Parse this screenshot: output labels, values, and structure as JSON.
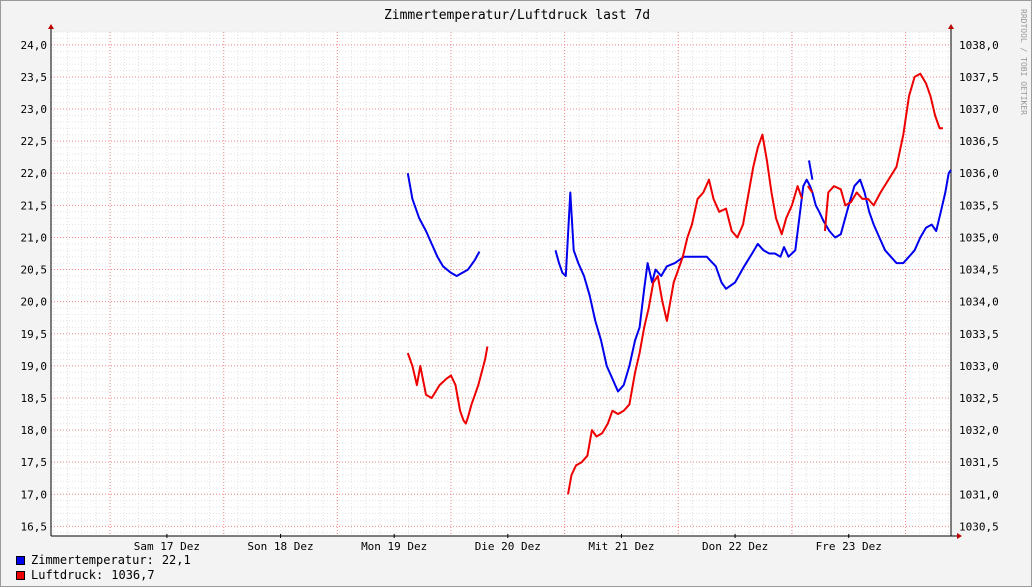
{
  "colors": {
    "temp": "#0000ee",
    "pressure": "#ee0000",
    "grid_minor": "#e2e2e2",
    "grid_major": "#f08a8a",
    "background": "#ffffff"
  },
  "watermark": "RRDTOOL / TOBI OETIKER",
  "legend": [
    {
      "label": "Zimmertemperatur:",
      "value": "22,1",
      "color": "#0000ee"
    },
    {
      "label": "Luftdruck:",
      "value": "1036,7",
      "color": "#ee0000"
    }
  ],
  "chart_data": {
    "type": "line",
    "title": "Zimmertemperatur/Luftdruck last 7d",
    "grid": true,
    "legend_position": "bottom-left",
    "x_ticks": [
      "Sam 17 Dez",
      "Son 18 Dez",
      "Mon 19 Dez",
      "Die 20 Dez",
      "Mit 21 Dez",
      "Don 22 Dez",
      "Fre 23 Dez"
    ],
    "x_range": [
      "Sam 17 Dez",
      "Fre 23 Dez"
    ],
    "y_left": {
      "range": [
        16.35,
        24.2
      ],
      "ticks": [
        "16,5",
        "17,0",
        "17,5",
        "18,0",
        "18,5",
        "19,0",
        "19,5",
        "20,0",
        "20,5",
        "21,0",
        "21,5",
        "22,0",
        "22,5",
        "23,0",
        "23,5",
        "24,0"
      ]
    },
    "y_right": {
      "range": [
        1030.35,
        1038.2
      ],
      "ticks": [
        "1030,5",
        "1031,0",
        "1031,5",
        "1032,0",
        "1032,5",
        "1033,0",
        "1033,5",
        "1034,0",
        "1034,5",
        "1035,0",
        "1035,5",
        "1036,0",
        "1036,5",
        "1037,0",
        "1037,5",
        "1038,0"
      ]
    },
    "series": [
      {
        "name": "Zimmertemperatur",
        "axis": "left",
        "segments": [
          [
            [
              19.62,
              22.0
            ],
            [
              19.66,
              21.6
            ],
            [
              19.72,
              21.3
            ],
            [
              19.78,
              21.1
            ],
            [
              19.83,
              20.9
            ],
            [
              19.88,
              20.7
            ],
            [
              19.93,
              20.55
            ],
            [
              20.0,
              20.45
            ],
            [
              20.05,
              20.4
            ],
            [
              20.1,
              20.45
            ],
            [
              20.15,
              20.5
            ],
            [
              20.21,
              20.65
            ],
            [
              20.25,
              20.78
            ]
          ],
          [
            [
              20.92,
              20.8
            ],
            [
              20.95,
              20.6
            ],
            [
              20.98,
              20.45
            ],
            [
              21.01,
              20.4
            ],
            [
              21.05,
              21.7
            ],
            [
              21.08,
              20.8
            ],
            [
              21.12,
              20.6
            ],
            [
              21.17,
              20.4
            ],
            [
              21.22,
              20.1
            ],
            [
              21.27,
              19.7
            ],
            [
              21.32,
              19.4
            ],
            [
              21.37,
              19.0
            ],
            [
              21.42,
              18.8
            ],
            [
              21.47,
              18.6
            ],
            [
              21.52,
              18.7
            ],
            [
              21.57,
              19.0
            ],
            [
              21.62,
              19.4
            ],
            [
              21.66,
              19.6
            ],
            [
              21.7,
              20.2
            ],
            [
              21.73,
              20.6
            ],
            [
              21.77,
              20.3
            ],
            [
              21.8,
              20.5
            ],
            [
              21.85,
              20.4
            ],
            [
              21.9,
              20.55
            ],
            [
              21.97,
              20.6
            ],
            [
              22.05,
              20.7
            ],
            [
              22.15,
              20.7
            ],
            [
              22.25,
              20.7
            ],
            [
              22.33,
              20.55
            ],
            [
              22.38,
              20.3
            ],
            [
              22.42,
              20.2
            ],
            [
              22.5,
              20.3
            ],
            [
              22.58,
              20.55
            ],
            [
              22.65,
              20.75
            ],
            [
              22.7,
              20.9
            ],
            [
              22.75,
              20.8
            ],
            [
              22.8,
              20.75
            ],
            [
              22.85,
              20.75
            ],
            [
              22.9,
              20.7
            ],
            [
              22.93,
              20.85
            ],
            [
              22.97,
              20.7
            ],
            [
              23.03,
              20.8
            ],
            [
              23.1,
              21.8
            ],
            [
              23.13,
              21.9
            ],
            [
              23.16,
              21.8
            ],
            [
              23.18,
              21.7
            ],
            [
              23.21,
              21.5
            ],
            [
              23.24,
              21.4
            ],
            [
              23.28,
              21.25
            ],
            [
              23.33,
              21.1
            ],
            [
              23.38,
              21.0
            ],
            [
              23.43,
              21.05
            ],
            [
              23.5,
              21.5
            ],
            [
              23.55,
              21.8
            ],
            [
              23.6,
              21.9
            ],
            [
              23.64,
              21.7
            ],
            [
              23.68,
              21.4
            ],
            [
              23.72,
              21.2
            ],
            [
              23.77,
              21.0
            ],
            [
              23.82,
              20.8
            ],
            [
              23.87,
              20.7
            ],
            [
              23.92,
              20.6
            ],
            [
              23.98,
              20.6
            ],
            [
              24.03,
              20.7
            ],
            [
              24.08,
              20.8
            ],
            [
              24.13,
              21.0
            ],
            [
              24.18,
              21.15
            ],
            [
              24.23,
              21.2
            ],
            [
              24.27,
              21.1
            ],
            [
              24.31,
              21.4
            ],
            [
              24.35,
              21.7
            ],
            [
              24.38,
              22.0
            ],
            [
              24.4,
              22.05
            ]
          ],
          [
            [
              23.15,
              22.2
            ],
            [
              23.18,
              21.9
            ]
          ]
        ]
      },
      {
        "name": "Luftdruck",
        "axis": "right",
        "segments": [
          [
            [
              19.62,
              1033.2
            ],
            [
              19.66,
              1033.0
            ],
            [
              19.7,
              1032.7
            ],
            [
              19.73,
              1033.0
            ],
            [
              19.78,
              1032.55
            ],
            [
              19.83,
              1032.5
            ],
            [
              19.9,
              1032.7
            ],
            [
              19.96,
              1032.8
            ],
            [
              20.0,
              1032.85
            ],
            [
              20.04,
              1032.7
            ],
            [
              20.08,
              1032.3
            ],
            [
              20.11,
              1032.15
            ],
            [
              20.13,
              1032.1
            ],
            [
              20.15,
              1032.2
            ],
            [
              20.18,
              1032.4
            ],
            [
              20.21,
              1032.55
            ],
            [
              20.24,
              1032.7
            ],
            [
              20.27,
              1032.9
            ],
            [
              20.3,
              1033.1
            ],
            [
              20.32,
              1033.3
            ]
          ],
          [
            [
              21.03,
              1031.0
            ],
            [
              21.06,
              1031.3
            ],
            [
              21.1,
              1031.45
            ],
            [
              21.15,
              1031.5
            ],
            [
              21.2,
              1031.6
            ],
            [
              21.24,
              1032.0
            ],
            [
              21.28,
              1031.9
            ],
            [
              21.33,
              1031.95
            ],
            [
              21.38,
              1032.1
            ],
            [
              21.42,
              1032.3
            ],
            [
              21.47,
              1032.25
            ],
            [
              21.52,
              1032.3
            ],
            [
              21.57,
              1032.4
            ],
            [
              21.62,
              1032.9
            ],
            [
              21.66,
              1033.2
            ],
            [
              21.7,
              1033.6
            ],
            [
              21.74,
              1033.9
            ],
            [
              21.78,
              1034.3
            ],
            [
              21.82,
              1034.4
            ],
            [
              21.86,
              1034.0
            ],
            [
              21.9,
              1033.7
            ],
            [
              21.93,
              1034.0
            ],
            [
              21.96,
              1034.3
            ],
            [
              22.0,
              1034.5
            ],
            [
              22.04,
              1034.7
            ],
            [
              22.08,
              1035.0
            ],
            [
              22.12,
              1035.2
            ],
            [
              22.17,
              1035.6
            ],
            [
              22.22,
              1035.7
            ],
            [
              22.27,
              1035.9
            ],
            [
              22.31,
              1035.6
            ],
            [
              22.36,
              1035.4
            ],
            [
              22.42,
              1035.45
            ],
            [
              22.47,
              1035.1
            ],
            [
              22.52,
              1035.0
            ],
            [
              22.57,
              1035.2
            ],
            [
              22.62,
              1035.7
            ],
            [
              22.66,
              1036.1
            ],
            [
              22.7,
              1036.4
            ],
            [
              22.74,
              1036.6
            ],
            [
              22.78,
              1036.2
            ],
            [
              22.82,
              1035.7
            ],
            [
              22.86,
              1035.3
            ],
            [
              22.91,
              1035.05
            ],
            [
              22.95,
              1035.3
            ],
            [
              23.0,
              1035.5
            ],
            [
              23.05,
              1035.8
            ],
            [
              23.09,
              1035.6
            ]
          ],
          [
            [
              23.14,
              1035.8
            ],
            [
              23.18,
              1035.7
            ]
          ],
          [
            [
              23.29,
              1035.1
            ],
            [
              23.32,
              1035.7
            ],
            [
              23.37,
              1035.8
            ],
            [
              23.43,
              1035.75
            ],
            [
              23.47,
              1035.5
            ],
            [
              23.52,
              1035.55
            ],
            [
              23.57,
              1035.7
            ],
            [
              23.62,
              1035.6
            ],
            [
              23.67,
              1035.6
            ],
            [
              23.72,
              1035.5
            ],
            [
              23.78,
              1035.7
            ],
            [
              23.85,
              1035.9
            ],
            [
              23.92,
              1036.1
            ],
            [
              23.98,
              1036.6
            ],
            [
              24.03,
              1037.2
            ],
            [
              24.08,
              1037.5
            ],
            [
              24.13,
              1037.55
            ],
            [
              24.18,
              1037.4
            ],
            [
              24.22,
              1037.2
            ],
            [
              24.26,
              1036.9
            ],
            [
              24.3,
              1036.7
            ],
            [
              24.33,
              1036.7
            ]
          ]
        ]
      }
    ]
  }
}
